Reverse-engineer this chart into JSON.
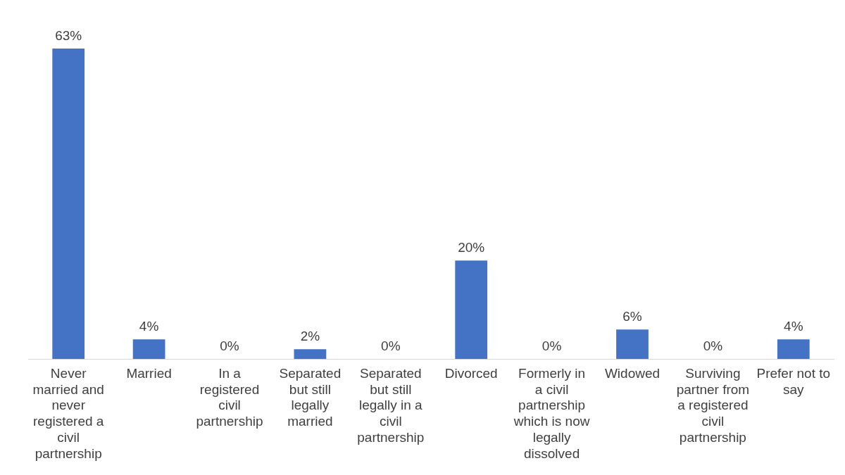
{
  "chart_data": {
    "type": "bar",
    "categories": [
      "Never married and never registered a civil partnership",
      "Married",
      "In a registered civil partnership",
      "Separated but still legally married",
      "Separated but still legally in a civil partnership",
      "Divorced",
      "Formerly in a civil partnership which is now legally dissolved",
      "Widowed",
      "Surviving partner from a registered civil partnership",
      "Prefer not to say"
    ],
    "values": [
      63,
      4,
      0,
      2,
      0,
      20,
      0,
      6,
      0,
      4
    ],
    "value_labels": [
      "63%",
      "4%",
      "0%",
      "2%",
      "0%",
      "20%",
      "0%",
      "6%",
      "0%",
      "4%"
    ],
    "color": "#4472c4",
    "grid": false,
    "legend": false
  }
}
